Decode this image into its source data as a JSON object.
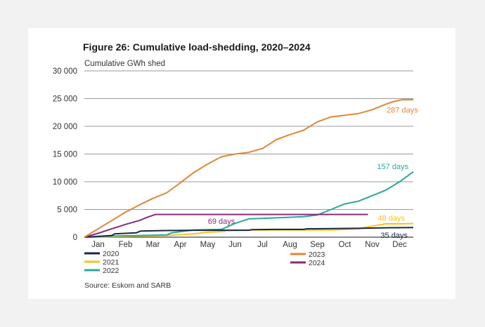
{
  "chart_data": {
    "type": "line",
    "title": "Figure 26: Cumulative load-shedding, 2020–2024",
    "ylabel": "Cumulative GWh shed",
    "xlabel": "",
    "ylim": [
      0,
      30000
    ],
    "xlim": [
      0,
      12
    ],
    "yticks": [
      0,
      5000,
      10000,
      15000,
      20000,
      25000,
      30000
    ],
    "ytick_labels": [
      "0",
      "5 000",
      "10 000",
      "15 000",
      "20 000",
      "25 000",
      "30 000"
    ],
    "categories": [
      "Jan",
      "Feb",
      "Mar",
      "Apr",
      "May",
      "Jun",
      "Jul",
      "Aug",
      "Sep",
      "Oct",
      "Nov",
      "Dec"
    ],
    "series": [
      {
        "name": "2020",
        "color": "#1a2744",
        "x": [
          0,
          1,
          1.1,
          1.9,
          2.05,
          3,
          4,
          5,
          6,
          6.1,
          7,
          8,
          8.1,
          9,
          10,
          11,
          12
        ],
        "values": [
          0,
          300,
          600,
          800,
          1100,
          1200,
          1250,
          1250,
          1250,
          1350,
          1400,
          1400,
          1500,
          1550,
          1600,
          1700,
          1750
        ],
        "end_label": "35 days"
      },
      {
        "name": "2021",
        "color": "#f5c518",
        "x": [
          0,
          1,
          2,
          3,
          4,
          4.5,
          5,
          5.2,
          6,
          7,
          8,
          9,
          9.5,
          10,
          10.5,
          11,
          11.5,
          12
        ],
        "values": [
          0,
          100,
          200,
          300,
          600,
          900,
          1000,
          1200,
          1300,
          1300,
          1300,
          1300,
          1400,
          1500,
          2000,
          2400,
          2400,
          2450
        ],
        "end_label": "48 days"
      },
      {
        "name": "2022",
        "color": "#2aa89a",
        "x": [
          0,
          1,
          2,
          3,
          3.2,
          3.5,
          4,
          5,
          5.5,
          6,
          7,
          7.5,
          8,
          8.5,
          9,
          9.5,
          10,
          10.5,
          11,
          11.5,
          12
        ],
        "values": [
          0,
          200,
          300,
          400,
          800,
          1000,
          1300,
          1400,
          2500,
          3300,
          3500,
          3600,
          3700,
          4000,
          5000,
          6000,
          6500,
          7500,
          8500,
          10000,
          11800
        ],
        "end_label": "157 days"
      },
      {
        "name": "2023",
        "color": "#e0873a",
        "x": [
          0,
          0.5,
          1,
          1.5,
          2,
          2.5,
          3,
          3.5,
          4,
          4.5,
          5,
          5.5,
          6,
          6.5,
          7,
          7.5,
          8,
          8.5,
          9,
          9.5,
          10,
          10.5,
          11,
          11.3,
          11.6,
          12
        ],
        "values": [
          0,
          1500,
          3000,
          4500,
          5800,
          7000,
          8000,
          9800,
          11700,
          13200,
          14500,
          15000,
          15300,
          16000,
          17600,
          18500,
          19300,
          20800,
          21700,
          22000,
          22300,
          23000,
          24000,
          24500,
          24800,
          24800
        ],
        "end_label": "287 days"
      },
      {
        "name": "2024",
        "color": "#8b2a7a",
        "x": [
          0,
          0.5,
          1,
          1.5,
          2,
          2.3,
          2.6,
          3,
          4,
          5,
          6,
          7,
          8,
          9,
          10,
          10.35
        ],
        "values": [
          0,
          700,
          1500,
          2300,
          3000,
          3600,
          4100,
          4100,
          4100,
          4100,
          4100,
          4100,
          4100,
          4100,
          4100,
          4100
        ],
        "end_label": "69 days"
      }
    ],
    "legend_position": "bottom-left",
    "source": "Source: Eskom and SARB"
  }
}
